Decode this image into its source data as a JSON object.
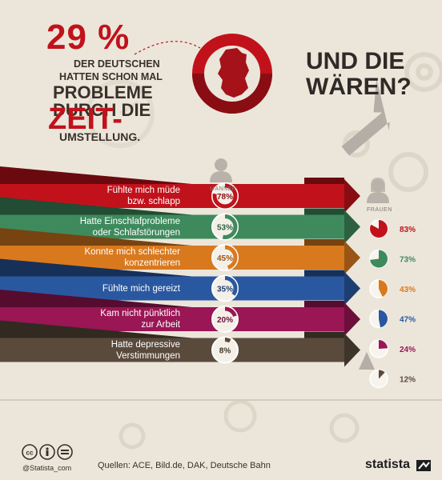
{
  "headline": {
    "percent": "29 %",
    "line1": "DER DEUTSCHEN",
    "line2": "HATTEN SCHON MAL",
    "line3": "PROBLEME",
    "line4": "DURCH DIE",
    "line5": "ZEIT-",
    "line6": "UMSTELLUNG."
  },
  "question": {
    "line1": "UND DIE",
    "line2": "WÄREN?"
  },
  "labels": {
    "men": "MÄNNER",
    "women": "FRAUEN"
  },
  "footer": {
    "sources": "Quellen: ACE, Bild.de, DAK, Deutsche Bahn",
    "handle": "@Statista_com",
    "brand": "statista"
  },
  "colors": {
    "background": "#ece6da",
    "accent": "#c1121b",
    "text_dark": "#3a302b"
  },
  "chart_data": {
    "type": "bar",
    "categories": [
      "Fühlte mich müde bzw. schlapp",
      "Hatte Einschlafprobleme oder Schlafstörungen",
      "Konnte mich schlechter konzentrieren",
      "Fühlte mich gereizt",
      "Kam nicht pünktlich zur Arbeit",
      "Hatte depressive Verstimmungen"
    ],
    "category_lines": [
      [
        "Fühlte mich müde",
        "bzw. schlapp"
      ],
      [
        "Hatte Einschlafprobleme",
        "oder Schlafstörungen"
      ],
      [
        "Konnte mich schlechter",
        "konzentrieren"
      ],
      [
        "Fühlte mich gereizt"
      ],
      [
        "Kam nicht pünktlich",
        "zur Arbeit"
      ],
      [
        "Hatte depressive",
        "Verstimmungen"
      ]
    ],
    "row_colors": [
      "#c1121b",
      "#3e8a5d",
      "#d9791e",
      "#2a58a0",
      "#9a1655",
      "#5a4a3c"
    ],
    "series": [
      {
        "name": "MÄNNER",
        "values": [
          78,
          53,
          45,
          35,
          20,
          8
        ]
      },
      {
        "name": "FRAUEN",
        "values": [
          83,
          73,
          43,
          47,
          24,
          12
        ]
      }
    ],
    "value_labels": {
      "men": [
        "78%",
        "53%",
        "45%",
        "35%",
        "20%",
        "8%"
      ],
      "women": [
        "83%",
        "73%",
        "43%",
        "47%",
        "24%",
        "12%"
      ]
    },
    "unit": "%"
  }
}
